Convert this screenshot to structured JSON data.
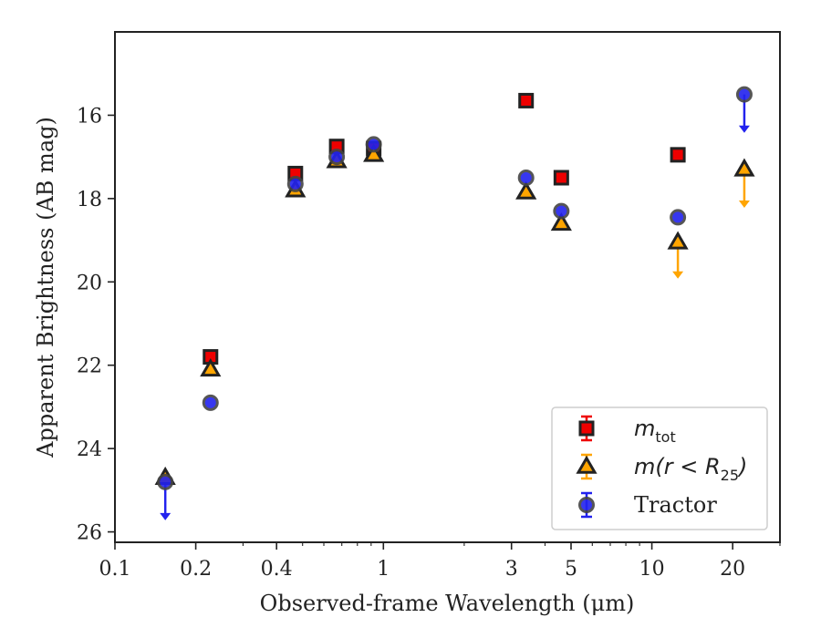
{
  "chart_data": {
    "type": "scatter",
    "title": "",
    "xlabel": "Observed-frame Wavelength (μm)",
    "ylabel": "Apparent Brightness (AB mag)",
    "xscale": "log",
    "xlim": [
      0.1,
      30
    ],
    "ylim": [
      26.25,
      14.0
    ],
    "y_inverted": true,
    "grid": false,
    "legend_position": "lower-right",
    "x_ticks": [
      0.1,
      0.2,
      0.4,
      1,
      3,
      5,
      10,
      20
    ],
    "x_tick_labels": [
      "0.1",
      "0.2",
      "0.4",
      "1",
      "3",
      "5",
      "10",
      "20"
    ],
    "y_ticks": [
      16,
      18,
      20,
      22,
      24,
      26
    ],
    "y_tick_labels": [
      "16",
      "18",
      "20",
      "22",
      "24",
      "26"
    ],
    "series": [
      {
        "name": "m_tot",
        "legend_label": "m",
        "legend_sub": "tot",
        "marker": "square",
        "color": "#ee0000",
        "edge_color": "#222222",
        "points": [
          {
            "x": 0.227,
            "y": 21.8
          },
          {
            "x": 0.47,
            "y": 17.4
          },
          {
            "x": 0.67,
            "y": 16.75
          },
          {
            "x": 0.92,
            "y": 16.8
          },
          {
            "x": 3.4,
            "y": 15.65
          },
          {
            "x": 4.6,
            "y": 17.5
          },
          {
            "x": 12.5,
            "y": 16.95
          }
        ]
      },
      {
        "name": "m(r < R25)",
        "legend_label": "m(r < R",
        "legend_sub": "25",
        "legend_suffix": ")",
        "marker": "triangle",
        "color": "#ffa500",
        "edge_color": "#222222",
        "points": [
          {
            "x": 0.154,
            "y": 24.7
          },
          {
            "x": 0.227,
            "y": 22.1
          },
          {
            "x": 0.47,
            "y": 17.8
          },
          {
            "x": 0.67,
            "y": 17.1
          },
          {
            "x": 0.92,
            "y": 16.95
          },
          {
            "x": 3.4,
            "y": 17.85
          },
          {
            "x": 4.6,
            "y": 18.6
          },
          {
            "x": 12.5,
            "y": 19.05,
            "upper_limit_to": 19.9
          },
          {
            "x": 22.1,
            "y": 17.3,
            "upper_limit_to": 18.2
          }
        ]
      },
      {
        "name": "Tractor",
        "marker": "circle",
        "color": "#2222ee",
        "edge_color": "#444444",
        "points": [
          {
            "x": 0.154,
            "y": 24.8,
            "upper_limit_to": 25.7
          },
          {
            "x": 0.227,
            "y": 22.9
          },
          {
            "x": 0.47,
            "y": 17.65
          },
          {
            "x": 0.67,
            "y": 17.0
          },
          {
            "x": 0.92,
            "y": 16.7
          },
          {
            "x": 3.4,
            "y": 17.5
          },
          {
            "x": 4.6,
            "y": 18.3
          },
          {
            "x": 12.5,
            "y": 18.45
          },
          {
            "x": 22.1,
            "y": 15.5,
            "upper_limit_to": 16.4
          }
        ]
      }
    ],
    "legend": [
      {
        "label": "m_tot"
      },
      {
        "label": "m(r < R25)"
      },
      {
        "label": "Tractor"
      }
    ]
  }
}
